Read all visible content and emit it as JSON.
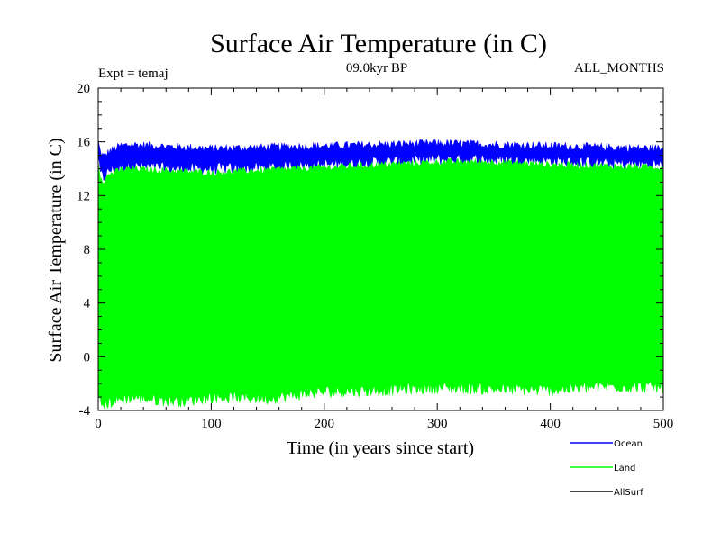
{
  "chart_data": {
    "type": "area",
    "title": "Surface Air Temperature (in C)",
    "subtitle": "09.0kyr BP",
    "experiment_label": "Expt = temaj",
    "period_label": "ALL_MONTHS",
    "xlabel": "Time (in years since start)",
    "ylabel": "Surface Air Temperature (in C)",
    "xlim": [
      0,
      500
    ],
    "ylim": [
      -4,
      20
    ],
    "x_ticks": [
      0,
      100,
      200,
      300,
      400,
      500
    ],
    "y_ticks": [
      -4,
      0,
      4,
      8,
      12,
      16,
      20
    ],
    "legend_position": "bottom-right",
    "series": [
      {
        "name": "Ocean",
        "color": "#0000ff",
        "style": "noisy-band",
        "x": [
          0,
          2,
          5,
          10,
          20,
          30,
          50,
          75,
          100,
          150,
          200,
          250,
          300,
          350,
          400,
          450,
          500
        ],
        "lower": [
          14.8,
          13.6,
          13.3,
          13.9,
          14.1,
          14.2,
          14.1,
          14.0,
          14.0,
          14.1,
          14.3,
          14.5,
          14.7,
          14.7,
          14.6,
          14.4,
          14.3
        ],
        "upper": [
          16.0,
          15.2,
          14.9,
          15.3,
          15.7,
          15.8,
          15.7,
          15.6,
          15.5,
          15.6,
          15.7,
          15.8,
          15.9,
          15.8,
          15.7,
          15.6,
          15.5
        ]
      },
      {
        "name": "Land",
        "color": "#00ff00",
        "style": "noisy-band",
        "x": [
          0,
          2,
          5,
          10,
          20,
          30,
          50,
          75,
          100,
          150,
          200,
          250,
          300,
          350,
          400,
          450,
          500
        ],
        "lower": [
          -3.2,
          -3.5,
          -3.6,
          -3.4,
          -3.2,
          -3.0,
          -3.2,
          -3.3,
          -3.0,
          -3.1,
          -2.6,
          -2.5,
          -2.3,
          -2.4,
          -2.5,
          -2.2,
          -2.3
        ],
        "upper": [
          14.5,
          13.4,
          13.1,
          13.6,
          13.9,
          14.0,
          13.9,
          13.8,
          13.7,
          13.9,
          14.1,
          14.3,
          14.5,
          14.5,
          14.3,
          14.2,
          14.1
        ]
      },
      {
        "name": "AllSurf",
        "color": "#000000",
        "style": "line",
        "x": [],
        "values": []
      }
    ]
  }
}
